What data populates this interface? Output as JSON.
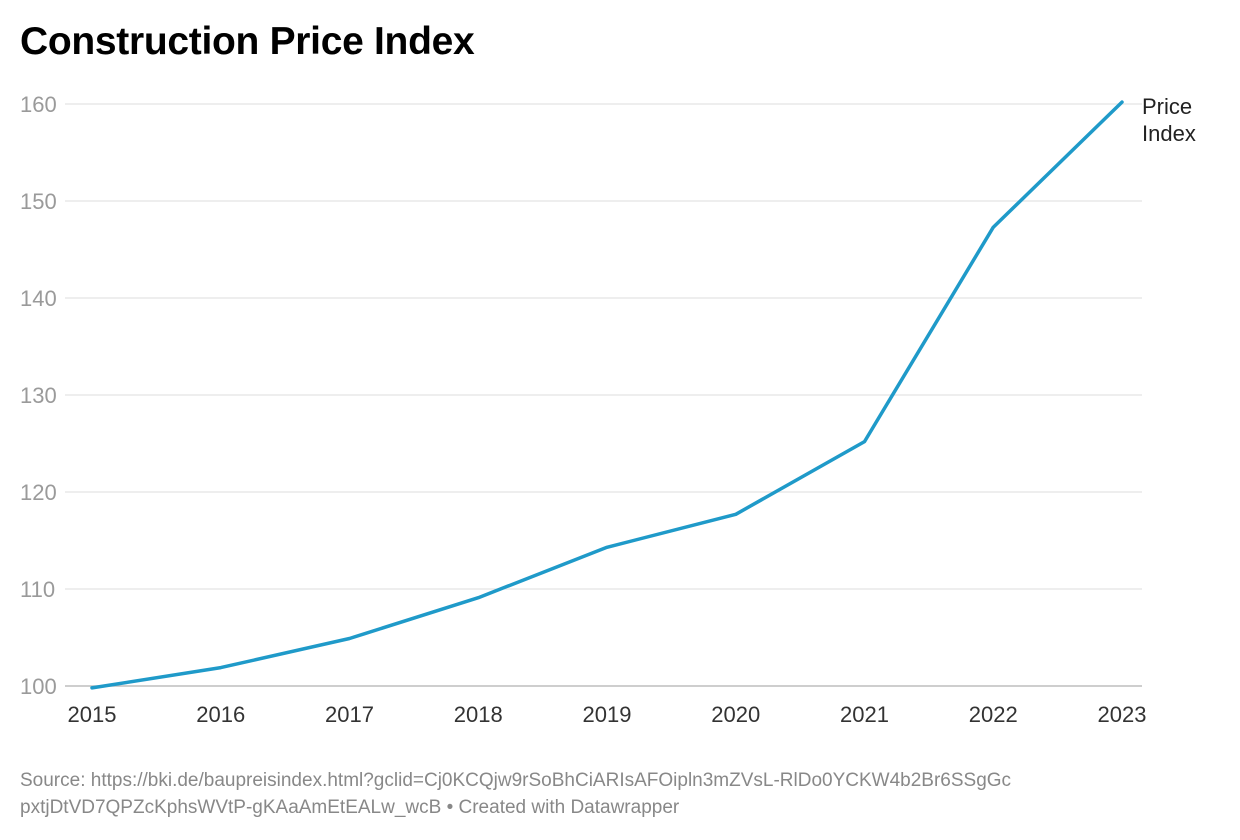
{
  "chart_data": {
    "type": "line",
    "title": "Construction Price Index",
    "x": [
      "2015",
      "2016",
      "2017",
      "2018",
      "2019",
      "2020",
      "2021",
      "2022",
      "2023"
    ],
    "series": [
      {
        "name": "Price Index",
        "name_lines": [
          "Price",
          "Index"
        ],
        "values": [
          99.8,
          101.9,
          104.9,
          109.1,
          114.3,
          117.7,
          125.2,
          147.3,
          160.2
        ],
        "color": "#1f9ac9"
      }
    ],
    "yticks": [
      100,
      110,
      120,
      130,
      140,
      150,
      160
    ],
    "ylim": [
      100,
      160
    ],
    "grid": true,
    "xlabel": "",
    "ylabel": ""
  },
  "footer": {
    "source": "Source: https://bki.de/baupreisindex.html?gclid=Cj0KCQjw9rSoBhCiARIsAFOipln3mZVsL-RlDo0YCKW4b2Br6SSgGcpxtjDtVD7QPZcKphsWVtP-gKAaAmEtEALw_wcB • Created with Datawrapper"
  }
}
